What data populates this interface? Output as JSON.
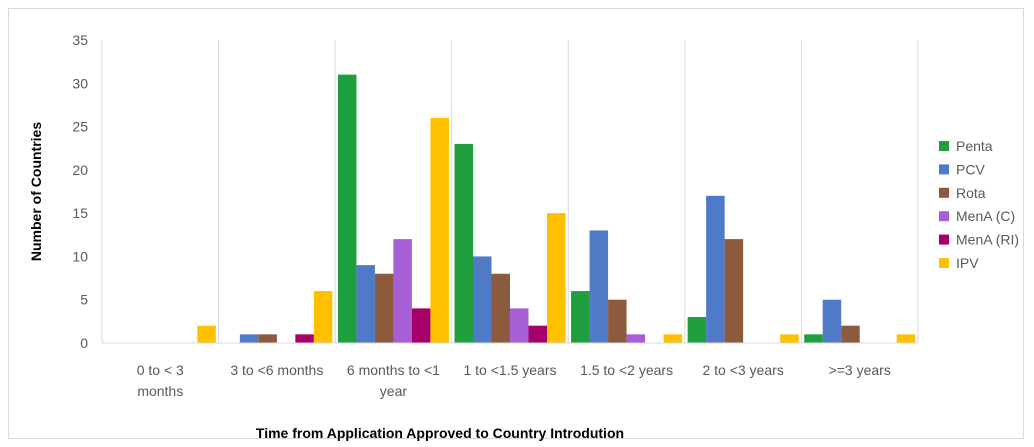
{
  "chart_data": {
    "type": "bar",
    "title": "",
    "xlabel": "Time from Application Approved to Country Introdution",
    "ylabel": "Number of Countries",
    "ylim": [
      0,
      35
    ],
    "yticks": [
      0,
      5,
      10,
      15,
      20,
      25,
      30,
      35
    ],
    "grid": "vertical category separators",
    "legend_position": "right",
    "categories": [
      "0 to < 3 months",
      "3 to <6 months",
      "6 months to <1 year",
      "1 to <1.5 years",
      "1.5 to <2 years",
      "2 to <3 years",
      ">=3 years"
    ],
    "category_lines": [
      [
        "0 to < 3",
        "months"
      ],
      [
        "3 to <6 months"
      ],
      [
        "6 months to <1",
        "year"
      ],
      [
        "1 to <1.5 years"
      ],
      [
        "1.5 to <2 years"
      ],
      [
        "2 to <3 years"
      ],
      [
        ">=3 years"
      ]
    ],
    "series": [
      {
        "name": "Penta",
        "color": "#1f9e3e",
        "values": [
          0,
          0,
          31,
          23,
          6,
          3,
          1
        ]
      },
      {
        "name": "PCV",
        "color": "#4f7ac7",
        "values": [
          0,
          1,
          9,
          10,
          13,
          17,
          5
        ]
      },
      {
        "name": "Rota",
        "color": "#8c5a3c",
        "values": [
          0,
          1,
          8,
          8,
          5,
          12,
          2
        ]
      },
      {
        "name": "MenA (C)",
        "color": "#a75fd6",
        "values": [
          0,
          0,
          12,
          4,
          1,
          0,
          0
        ]
      },
      {
        "name": "MenA (RI)",
        "color": "#a6006b",
        "values": [
          0,
          1,
          4,
          2,
          0,
          0,
          0
        ]
      },
      {
        "name": "IPV",
        "color": "#ffc000",
        "values": [
          2,
          6,
          26,
          15,
          1,
          1,
          1
        ]
      }
    ]
  }
}
